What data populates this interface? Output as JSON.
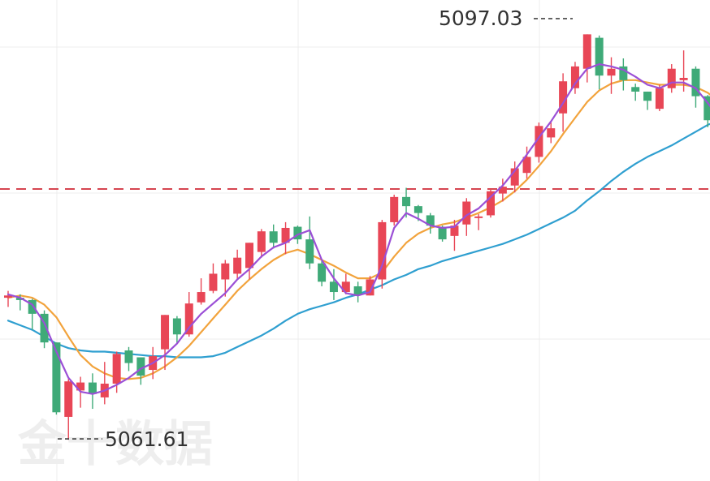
{
  "chart_data": {
    "type": "candlestick",
    "ylim": [
      5058,
      5100
    ],
    "reference_line": 5083.5,
    "colors": {
      "up": "#e84656",
      "down": "#3faa78",
      "ma1": "#9b4fd6",
      "ma2": "#f2a33c",
      "ma3": "#2f9fd0",
      "reference": "#d64550"
    },
    "watermark": "金十数据",
    "annotations": [
      {
        "label": "5097.03",
        "value": 5097.03
      },
      {
        "label": "5061.61",
        "value": 5061.61
      }
    ],
    "candles": [
      [
        5074.0,
        5074.2,
        5073.2,
        5074.6
      ],
      [
        5074.0,
        5073.8,
        5072.9,
        5074.3
      ],
      [
        5073.8,
        5072.6,
        5071.2,
        5073.9
      ],
      [
        5072.6,
        5070.1,
        5069.6,
        5072.9
      ],
      [
        5070.1,
        5064.0,
        5063.8,
        5070.1
      ],
      [
        5063.6,
        5066.7,
        5061.6,
        5066.9
      ],
      [
        5065.9,
        5066.6,
        5064.4,
        5067.1
      ],
      [
        5066.6,
        5065.6,
        5064.3,
        5067.4
      ],
      [
        5065.3,
        5066.5,
        5064.7,
        5068.4
      ],
      [
        5066.5,
        5069.1,
        5065.7,
        5069.3
      ],
      [
        5069.4,
        5068.3,
        5067.6,
        5069.7
      ],
      [
        5068.8,
        5067.2,
        5066.4,
        5068.8
      ],
      [
        5067.7,
        5068.9,
        5066.9,
        5069.7
      ],
      [
        5069.5,
        5072.5,
        5067.7,
        5072.5
      ],
      [
        5072.2,
        5070.8,
        5070.0,
        5072.4
      ],
      [
        5070.8,
        5073.5,
        5070.6,
        5074.5
      ],
      [
        5073.6,
        5074.5,
        5073.4,
        5075.7
      ],
      [
        5074.6,
        5076.1,
        5074.4,
        5077.0
      ],
      [
        5075.6,
        5077.0,
        5074.1,
        5077.3
      ],
      [
        5076.1,
        5077.5,
        5075.6,
        5078.2
      ],
      [
        5076.6,
        5078.8,
        5075.6,
        5078.8
      ],
      [
        5078.0,
        5079.8,
        5077.5,
        5080.0
      ],
      [
        5079.8,
        5078.8,
        5078.3,
        5080.4
      ],
      [
        5078.8,
        5080.1,
        5077.8,
        5080.6
      ],
      [
        5080.2,
        5079.1,
        5078.7,
        5080.3
      ],
      [
        5079.1,
        5077.0,
        5076.5,
        5081.1
      ],
      [
        5077.0,
        5075.4,
        5075.0,
        5077.2
      ],
      [
        5075.4,
        5074.5,
        5073.8,
        5076.5
      ],
      [
        5074.5,
        5075.4,
        5074.3,
        5076.1
      ],
      [
        5075.0,
        5074.3,
        5073.6,
        5075.4
      ],
      [
        5074.2,
        5075.6,
        5074.2,
        5075.9
      ],
      [
        5075.6,
        5080.6,
        5074.8,
        5080.8
      ],
      [
        5080.6,
        5082.8,
        5080.3,
        5083.0
      ],
      [
        5082.8,
        5082.0,
        5081.0,
        5083.6
      ],
      [
        5082.0,
        5081.4,
        5080.7,
        5082.1
      ],
      [
        5081.2,
        5080.3,
        5079.6,
        5081.4
      ],
      [
        5080.2,
        5079.1,
        5078.9,
        5080.3
      ],
      [
        5079.4,
        5080.3,
        5078.1,
        5080.8
      ],
      [
        5080.4,
        5082.4,
        5079.4,
        5082.7
      ],
      [
        5081.0,
        5081.1,
        5079.9,
        5081.3
      ],
      [
        5081.2,
        5083.3,
        5081.0,
        5083.5
      ],
      [
        5083.1,
        5083.7,
        5082.4,
        5084.4
      ],
      [
        5083.8,
        5085.3,
        5083.2,
        5085.9
      ],
      [
        5084.9,
        5086.3,
        5084.4,
        5087.2
      ],
      [
        5086.3,
        5089.0,
        5085.8,
        5089.3
      ],
      [
        5088.0,
        5088.8,
        5087.5,
        5089.3
      ],
      [
        5090.1,
        5092.9,
        5088.5,
        5093.6
      ],
      [
        5092.3,
        5094.2,
        5091.8,
        5094.6
      ],
      [
        5094.0,
        5097.0,
        5092.8,
        5097.0
      ],
      [
        5096.7,
        5093.4,
        5092.2,
        5096.9
      ],
      [
        5093.4,
        5094.0,
        5091.8,
        5095.0
      ],
      [
        5094.2,
        5093.0,
        5092.1,
        5094.9
      ],
      [
        5092.4,
        5092.0,
        5091.2,
        5092.7
      ],
      [
        5092.0,
        5091.2,
        5090.4,
        5092.0
      ],
      [
        5090.5,
        5092.3,
        5090.3,
        5092.6
      ],
      [
        5092.3,
        5094.0,
        5091.9,
        5094.4
      ],
      [
        5093.0,
        5093.2,
        5092.0,
        5095.6
      ],
      [
        5094.0,
        5091.6,
        5090.6,
        5094.2
      ],
      [
        5091.6,
        5089.5,
        5088.9,
        5091.7
      ],
      [
        5089.5,
        5087.8,
        5087.0,
        5089.7
      ]
    ],
    "ma1": [
      5074.3,
      5074.0,
      5073.4,
      5071.8,
      5069.3,
      5067.0,
      5065.8,
      5065.6,
      5065.9,
      5066.4,
      5067.0,
      5067.8,
      5068.3,
      5069.0,
      5070.0,
      5071.4,
      5072.6,
      5073.5,
      5074.4,
      5075.6,
      5076.5,
      5077.6,
      5078.4,
      5078.8,
      5079.5,
      5079.9,
      5077.3,
      5075.7,
      5074.4,
      5074.2,
      5074.5,
      5076.8,
      5080.1,
      5081.4,
      5080.9,
      5080.3,
      5080.1,
      5080.2,
      5081.2,
      5081.8,
      5082.8,
      5083.8,
      5085.1,
      5086.5,
      5088.0,
      5089.4,
      5091.0,
      5092.7,
      5094.0,
      5094.4,
      5094.2,
      5093.9,
      5093.3,
      5092.6,
      5092.3,
      5092.8,
      5092.8,
      5092.3,
      5091.0,
      5089.7
    ],
    "ma2": [
      5074.0,
      5074.2,
      5074.0,
      5073.4,
      5072.3,
      5070.6,
      5069.0,
      5068.0,
      5067.4,
      5067.0,
      5066.9,
      5067.0,
      5067.4,
      5068.0,
      5068.8,
      5069.8,
      5071.0,
      5072.2,
      5073.4,
      5074.6,
      5075.6,
      5076.5,
      5077.3,
      5077.9,
      5078.2,
      5077.8,
      5077.3,
      5076.8,
      5076.2,
      5075.7,
      5075.7,
      5076.2,
      5077.6,
      5078.8,
      5079.6,
      5080.1,
      5080.4,
      5080.6,
      5081.0,
      5081.4,
      5081.9,
      5082.5,
      5083.3,
      5084.3,
      5085.5,
      5086.8,
      5088.3,
      5089.7,
      5091.1,
      5092.1,
      5092.7,
      5093.0,
      5093.0,
      5092.8,
      5092.6,
      5092.6,
      5092.6,
      5092.4,
      5091.9,
      5091.1
    ],
    "ma3": [
      5072.0,
      5071.6,
      5071.2,
      5070.6,
      5070.0,
      5069.6,
      5069.4,
      5069.3,
      5069.3,
      5069.2,
      5069.1,
      5069.0,
      5068.9,
      5068.9,
      5068.8,
      5068.8,
      5068.8,
      5068.9,
      5069.2,
      5069.7,
      5070.2,
      5070.7,
      5071.3,
      5072.0,
      5072.6,
      5073.0,
      5073.3,
      5073.6,
      5074.0,
      5074.3,
      5074.7,
      5075.1,
      5075.6,
      5076.0,
      5076.5,
      5076.8,
      5077.2,
      5077.5,
      5077.8,
      5078.1,
      5078.4,
      5078.7,
      5079.1,
      5079.5,
      5080.0,
      5080.5,
      5081.0,
      5081.6,
      5082.5,
      5083.3,
      5084.2,
      5085.0,
      5085.7,
      5086.3,
      5086.8,
      5087.3,
      5087.9,
      5088.5,
      5089.1,
      5089.5
    ]
  }
}
